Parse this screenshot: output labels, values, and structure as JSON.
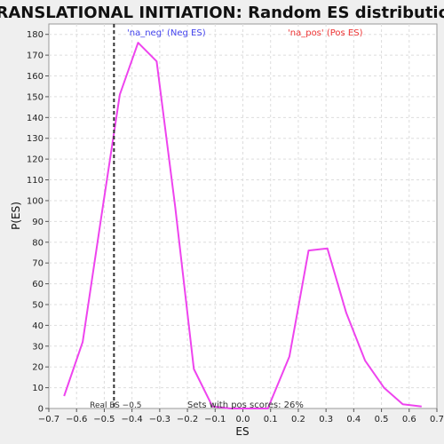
{
  "chart_data": {
    "type": "line",
    "title": "TRANSLATIONAL INITIATION: Random ES distribution",
    "xlabel": "ES",
    "ylabel": "P(ES)",
    "xlim": [
      -0.7,
      0.7
    ],
    "ylim": [
      0,
      185
    ],
    "x_ticks": [
      -0.7,
      -0.6,
      -0.5,
      -0.4,
      -0.3,
      -0.2,
      -0.1,
      0.0,
      0.1,
      0.2,
      0.3,
      0.4,
      0.5,
      0.6,
      0.7
    ],
    "x_tick_labels": [
      "−0.7",
      "−0.6",
      "−0.5",
      "−0.4",
      "−0.3",
      "−0.2",
      "−0.1",
      "0.0",
      "0.1",
      "0.2",
      "0.3",
      "0.4",
      "0.5",
      "0.6",
      "0.7"
    ],
    "y_ticks": [
      0,
      10,
      20,
      30,
      40,
      50,
      60,
      70,
      80,
      90,
      100,
      110,
      120,
      130,
      140,
      150,
      160,
      170,
      180
    ],
    "y_tick_labels": [
      "0",
      "10",
      "20",
      "30",
      "40",
      "50",
      "60",
      "70",
      "80",
      "90",
      "100",
      "110",
      "120",
      "130",
      "140",
      "150",
      "160",
      "170",
      "180"
    ],
    "grid": true,
    "series": [
      {
        "color": "#ee44ee",
        "x": [
          -0.645,
          -0.578,
          -0.511,
          -0.444,
          -0.378,
          -0.311,
          -0.244,
          -0.177,
          -0.11,
          -0.043,
          0.024,
          0.09,
          0.168,
          0.237,
          0.305,
          0.373,
          0.441,
          0.509,
          0.577,
          0.645
        ],
        "y": [
          6,
          32,
          92,
          151,
          176,
          167,
          97,
          19,
          1,
          0,
          0,
          0,
          25,
          76,
          77,
          46,
          23,
          10,
          2,
          1
        ]
      }
    ],
    "vline": {
      "x": -0.465,
      "label": "Real ES −0.5",
      "color": "#333333"
    },
    "annotations": [
      {
        "text": "'na_neg' (Neg ES)",
        "color": "#4444ee"
      },
      {
        "text": "'na_pos' (Pos ES)",
        "color": "#ee3333"
      },
      {
        "text": "Sets with pos scores: 26%",
        "color": "#333333"
      }
    ]
  }
}
